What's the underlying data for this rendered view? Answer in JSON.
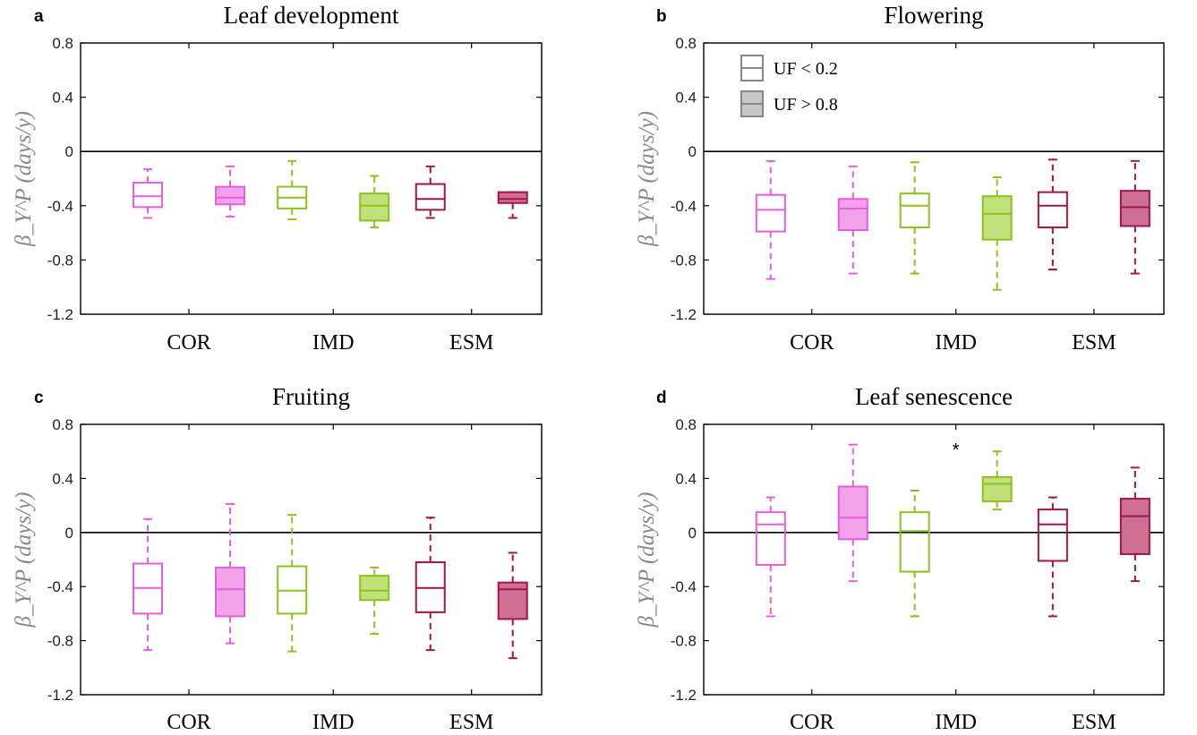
{
  "chart_data": [
    {
      "type": "box",
      "panel_letter": "a",
      "title": "Leaf development",
      "ylabel": "β_Y^P (days/y)",
      "ylim": [
        -1.2,
        0.8
      ],
      "yticks": [
        0.8,
        0.4,
        0,
        -0.4,
        -0.8,
        -1.2
      ],
      "ytick_labels": [
        "0.8",
        "0.4",
        "0",
        "-0.4",
        "-0.8",
        "-1.2"
      ],
      "categories": [
        "COR",
        "IMD",
        "ESM"
      ],
      "grid": false,
      "annotations": [],
      "boxes": [
        {
          "category": "COR",
          "group": "UF < 0.2",
          "whisker_low": -0.49,
          "q1": -0.41,
          "median": -0.33,
          "q3": -0.23,
          "whisker_high": -0.13
        },
        {
          "category": "COR",
          "group": "UF > 0.8",
          "whisker_low": -0.48,
          "q1": -0.39,
          "median": -0.34,
          "q3": -0.26,
          "whisker_high": -0.11
        },
        {
          "category": "IMD",
          "group": "UF < 0.2",
          "whisker_low": -0.5,
          "q1": -0.42,
          "median": -0.34,
          "q3": -0.26,
          "whisker_high": -0.07
        },
        {
          "category": "IMD",
          "group": "UF > 0.8",
          "whisker_low": -0.56,
          "q1": -0.51,
          "median": -0.4,
          "q3": -0.31,
          "whisker_high": -0.18
        },
        {
          "category": "ESM",
          "group": "UF < 0.2",
          "whisker_low": -0.49,
          "q1": -0.43,
          "median": -0.35,
          "q3": -0.24,
          "whisker_high": -0.11
        },
        {
          "category": "ESM",
          "group": "UF > 0.8",
          "whisker_low": -0.49,
          "q1": -0.38,
          "median": -0.35,
          "q3": -0.3,
          "whisker_high": -0.3
        }
      ]
    },
    {
      "type": "box",
      "panel_letter": "b",
      "title": "Flowering",
      "ylabel": "β_Y^P (days/y)",
      "ylim": [
        -1.2,
        0.8
      ],
      "yticks": [
        0.8,
        0.4,
        0,
        -0.4,
        -0.8,
        -1.2
      ],
      "ytick_labels": [
        "0.8",
        "0.4",
        "0",
        "-0.4",
        "-0.8",
        "-1.2"
      ],
      "categories": [
        "COR",
        "IMD",
        "ESM"
      ],
      "grid": false,
      "annotations": [],
      "legend": {
        "placement": "top-left",
        "entries": [
          "UF < 0.2",
          "UF > 0.8"
        ]
      },
      "boxes": [
        {
          "category": "COR",
          "group": "UF < 0.2",
          "whisker_low": -0.94,
          "q1": -0.59,
          "median": -0.43,
          "q3": -0.32,
          "whisker_high": -0.07
        },
        {
          "category": "COR",
          "group": "UF > 0.8",
          "whisker_low": -0.9,
          "q1": -0.58,
          "median": -0.42,
          "q3": -0.35,
          "whisker_high": -0.11
        },
        {
          "category": "IMD",
          "group": "UF < 0.2",
          "whisker_low": -0.9,
          "q1": -0.56,
          "median": -0.4,
          "q3": -0.31,
          "whisker_high": -0.08
        },
        {
          "category": "IMD",
          "group": "UF > 0.8",
          "whisker_low": -1.02,
          "q1": -0.65,
          "median": -0.46,
          "q3": -0.33,
          "whisker_high": -0.19
        },
        {
          "category": "ESM",
          "group": "UF < 0.2",
          "whisker_low": -0.87,
          "q1": -0.56,
          "median": -0.4,
          "q3": -0.3,
          "whisker_high": -0.06
        },
        {
          "category": "ESM",
          "group": "UF > 0.8",
          "whisker_low": -0.9,
          "q1": -0.55,
          "median": -0.41,
          "q3": -0.29,
          "whisker_high": -0.07
        }
      ]
    },
    {
      "type": "box",
      "panel_letter": "c",
      "title": "Fruiting",
      "ylabel": "β_Y^P (days/y)",
      "ylim": [
        -1.2,
        0.8
      ],
      "yticks": [
        0.8,
        0.4,
        0,
        -0.4,
        -0.8,
        -1.2
      ],
      "ytick_labels": [
        "0.8",
        "0.4",
        "0",
        "-0.4",
        "-0.8",
        "-1.2"
      ],
      "categories": [
        "COR",
        "IMD",
        "ESM"
      ],
      "grid": false,
      "annotations": [],
      "boxes": [
        {
          "category": "COR",
          "group": "UF < 0.2",
          "whisker_low": -0.87,
          "q1": -0.6,
          "median": -0.41,
          "q3": -0.23,
          "whisker_high": 0.1
        },
        {
          "category": "COR",
          "group": "UF > 0.8",
          "whisker_low": -0.82,
          "q1": -0.62,
          "median": -0.42,
          "q3": -0.26,
          "whisker_high": 0.21
        },
        {
          "category": "IMD",
          "group": "UF < 0.2",
          "whisker_low": -0.88,
          "q1": -0.6,
          "median": -0.43,
          "q3": -0.25,
          "whisker_high": 0.13
        },
        {
          "category": "IMD",
          "group": "UF > 0.8",
          "whisker_low": -0.75,
          "q1": -0.5,
          "median": -0.43,
          "q3": -0.32,
          "whisker_high": -0.26
        },
        {
          "category": "ESM",
          "group": "UF < 0.2",
          "whisker_low": -0.87,
          "q1": -0.59,
          "median": -0.41,
          "q3": -0.22,
          "whisker_high": 0.11
        },
        {
          "category": "ESM",
          "group": "UF > 0.8",
          "whisker_low": -0.93,
          "q1": -0.64,
          "median": -0.42,
          "q3": -0.37,
          "whisker_high": -0.15
        }
      ]
    },
    {
      "type": "box",
      "panel_letter": "d",
      "title": "Leaf senescence",
      "ylabel": "β_Y^P (days/y)",
      "ylim": [
        -1.2,
        0.8
      ],
      "yticks": [
        0.8,
        0.4,
        0,
        -0.4,
        -0.8,
        -1.2
      ],
      "ytick_labels": [
        "0.8",
        "0.4",
        "0",
        "-0.4",
        "-0.8",
        "-1.2"
      ],
      "categories": [
        "COR",
        "IMD",
        "ESM"
      ],
      "grid": false,
      "annotations": [
        {
          "text": "*",
          "x": "IMD",
          "y": 0.62
        }
      ],
      "boxes": [
        {
          "category": "COR",
          "group": "UF < 0.2",
          "whisker_low": -0.62,
          "q1": -0.24,
          "median": 0.06,
          "q3": 0.15,
          "whisker_high": 0.26
        },
        {
          "category": "COR",
          "group": "UF > 0.8",
          "whisker_low": -0.36,
          "q1": -0.05,
          "median": 0.11,
          "q3": 0.34,
          "whisker_high": 0.65
        },
        {
          "category": "IMD",
          "group": "UF < 0.2",
          "whisker_low": -0.62,
          "q1": -0.29,
          "median": 0.01,
          "q3": 0.15,
          "whisker_high": 0.31
        },
        {
          "category": "IMD",
          "group": "UF > 0.8",
          "whisker_low": 0.17,
          "q1": 0.23,
          "median": 0.36,
          "q3": 0.41,
          "whisker_high": 0.6
        },
        {
          "category": "ESM",
          "group": "UF < 0.2",
          "whisker_low": -0.62,
          "q1": -0.21,
          "median": 0.06,
          "q3": 0.17,
          "whisker_high": 0.26
        },
        {
          "category": "ESM",
          "group": "UF > 0.8",
          "whisker_low": -0.36,
          "q1": -0.16,
          "median": 0.12,
          "q3": 0.25,
          "whisker_high": 0.48
        }
      ]
    }
  ],
  "colors": {
    "COR": "#e85ce0",
    "IMD": "#8cc21d",
    "ESM": "#a3144f",
    "COR_fill": "#f1a3ea",
    "IMD_fill": "#bfe07a",
    "ESM_fill": "#cf6f92",
    "legend_stroke": "#888888",
    "legend_fill": "#c8c8c8",
    "axis": "#000000",
    "ylabel": "#888888"
  },
  "legend_box_style": {
    "UF < 0.2": "open",
    "UF > 0.8": "filled"
  }
}
